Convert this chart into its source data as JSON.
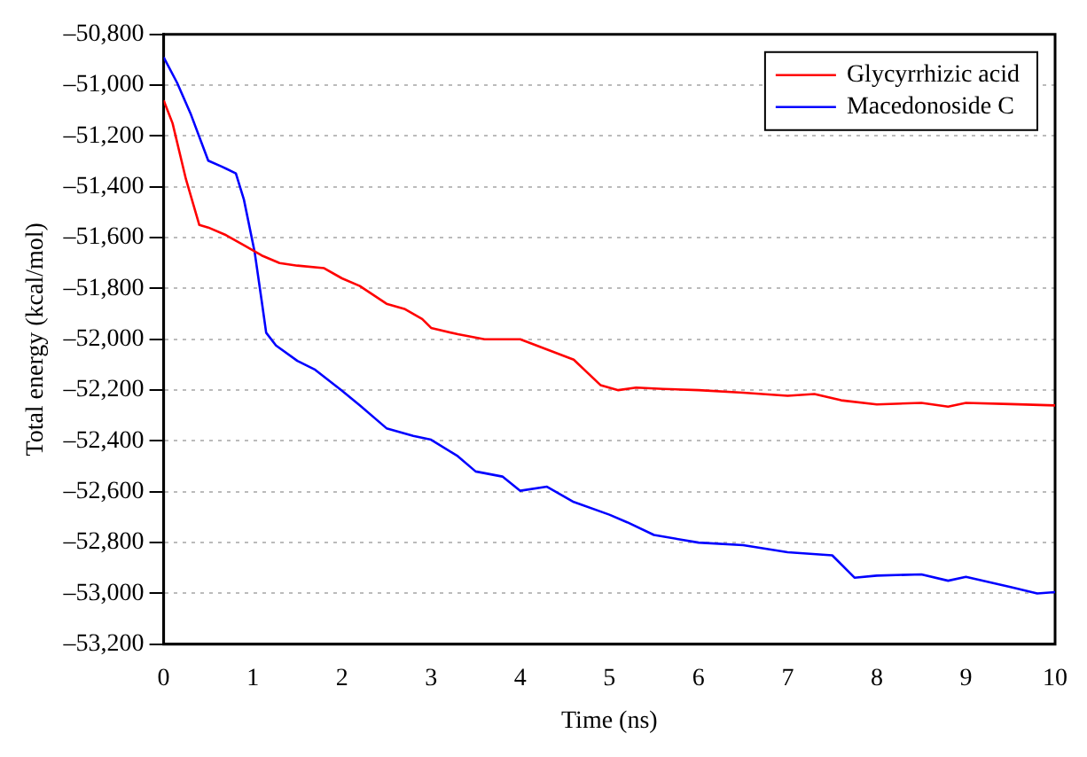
{
  "chart_data": {
    "type": "line",
    "xlabel": "Time (ns)",
    "ylabel": "Total energy (kcal/mol)",
    "xlim": [
      0,
      10
    ],
    "xticks": [
      0,
      1,
      2,
      3,
      4,
      5,
      6,
      7,
      8,
      9,
      10
    ],
    "ylim": [
      -53200,
      -50800
    ],
    "yticks": [
      {
        "value": -53200,
        "label": "–53,200"
      },
      {
        "value": -53000,
        "label": "–53,000"
      },
      {
        "value": -52800,
        "label": "–52,800"
      },
      {
        "value": -52600,
        "label": "–52,600"
      },
      {
        "value": -52400,
        "label": "–52,400"
      },
      {
        "value": -52200,
        "label": "–52,200"
      },
      {
        "value": -52000,
        "label": "–52,000"
      },
      {
        "value": -51800,
        "label": "–51,800"
      },
      {
        "value": -51600,
        "label": "–51,600"
      },
      {
        "value": -51400,
        "label": "–51,400"
      },
      {
        "value": -51200,
        "label": "–51,200"
      },
      {
        "value": -51000,
        "label": "–51,000"
      },
      {
        "value": -50800,
        "label": "–50,800"
      }
    ],
    "grid": "y",
    "legend": "top right",
    "marker": "none",
    "line_style": "solid",
    "series": [
      {
        "name": "Glycyrrhizic acid",
        "color": "#ff0000",
        "x": [
          0,
          0.1,
          0.25,
          0.4,
          0.5,
          0.7,
          0.9,
          1.1,
          1.3,
          1.5,
          1.8,
          2,
          2.2,
          2.5,
          2.7,
          2.9,
          3,
          3.3,
          3.6,
          4,
          4.3,
          4.6,
          4.9,
          5.1,
          5.3,
          5.6,
          6,
          6.5,
          7,
          7.3,
          7.6,
          8,
          8.5,
          8.8,
          9,
          9.5,
          10
        ],
        "values": [
          -51060,
          -51150,
          -51370,
          -51550,
          -51560,
          -51590,
          -51630,
          -51670,
          -51700,
          -51710,
          -51720,
          -51760,
          -51790,
          -51860,
          -51880,
          -51920,
          -51955,
          -51980,
          -52000,
          -52000,
          -52040,
          -52080,
          -52180,
          -52200,
          -52190,
          -52195,
          -52200,
          -52210,
          -52222,
          -52215,
          -52240,
          -52256,
          -52250,
          -52265,
          -52250,
          -52255,
          -52260
        ]
      },
      {
        "name": "Macedonoside C",
        "color": "#0000ff",
        "x": [
          0,
          0.15,
          0.3,
          0.5,
          0.65,
          0.81,
          0.9,
          1.02,
          1.1,
          1.15,
          1.26,
          1.5,
          1.7,
          2,
          2.2,
          2.5,
          2.8,
          3,
          3.3,
          3.5,
          3.8,
          4,
          4.3,
          4.6,
          5,
          5.2,
          5.5,
          6,
          6.5,
          7,
          7.5,
          7.75,
          8,
          8.5,
          8.8,
          9,
          9.5,
          9.8,
          10
        ],
        "values": [
          -50890,
          -50990,
          -51110,
          -51297,
          -51320,
          -51347,
          -51450,
          -51655,
          -51850,
          -51974,
          -52024,
          -52085,
          -52120,
          -52202,
          -52260,
          -52350,
          -52380,
          -52395,
          -52460,
          -52520,
          -52540,
          -52596,
          -52580,
          -52640,
          -52690,
          -52720,
          -52770,
          -52800,
          -52810,
          -52838,
          -52850,
          -52938,
          -52930,
          -52925,
          -52950,
          -52935,
          -52975,
          -53000,
          -52995
        ]
      }
    ]
  }
}
